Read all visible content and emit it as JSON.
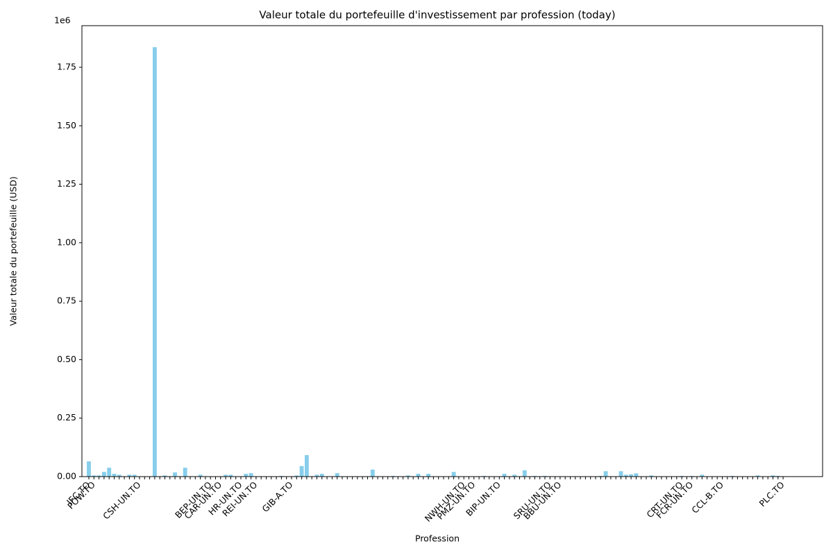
{
  "chart_data": {
    "type": "bar",
    "title": "Valeur totale du portefeuille d'investissement par profession (today)",
    "x_label": "Profession",
    "y_label": "Valeur totale du portefeuille (USD)",
    "y_offset_label": "1e6",
    "color": "#87ceeb",
    "categories": [
      "IFC.TO",
      "POW.TO",
      null,
      null,
      null,
      null,
      null,
      null,
      null,
      null,
      "CSH-UN.TO",
      null,
      null,
      null,
      null,
      null,
      null,
      null,
      null,
      null,
      null,
      null,
      null,
      null,
      "BEP-UN.TO",
      null,
      "CAR-UN.TO",
      null,
      null,
      null,
      "HR-UN.TO",
      null,
      null,
      "REI-UN.TO",
      null,
      null,
      null,
      null,
      null,
      null,
      "GIB-A.TO",
      null,
      null,
      null,
      null,
      null,
      null,
      null,
      null,
      null,
      null,
      null,
      null,
      null,
      null,
      null,
      null,
      null,
      null,
      null,
      null,
      null,
      null,
      null,
      null,
      null,
      null,
      null,
      null,
      null,
      null,
      null,
      null,
      null,
      "NWH-UN.TO",
      null,
      "PMZ-UN.TO",
      null,
      null,
      null,
      null,
      "BIP-UN.TO",
      null,
      null,
      null,
      null,
      null,
      null,
      null,
      null,
      null,
      "SRU-UN.TO",
      null,
      "BBU-UN.TO",
      null,
      null,
      null,
      null,
      null,
      null,
      null,
      null,
      null,
      null,
      null,
      null,
      null,
      null,
      null,
      null,
      null,
      null,
      null,
      null,
      null,
      null,
      null,
      "CRT-UN.TO",
      null,
      "FCR-UN.TO",
      null,
      null,
      null,
      null,
      null,
      "CCL-B.TO",
      null,
      null,
      null,
      null,
      null,
      null,
      null,
      null,
      null,
      null,
      null,
      "PLC.TO"
    ],
    "values": [
      65000,
      5000,
      5000,
      20000,
      38000,
      12000,
      8000,
      0,
      8000,
      8000,
      0,
      0,
      0,
      1836000,
      0,
      5000,
      0,
      18000,
      0,
      38000,
      0,
      0,
      8000,
      0,
      0,
      0,
      0,
      8000,
      8000,
      0,
      0,
      12000,
      15000,
      0,
      0,
      0,
      0,
      0,
      3000,
      0,
      0,
      5000,
      45000,
      92000,
      0,
      8000,
      12000,
      0,
      0,
      15000,
      0,
      0,
      0,
      0,
      0,
      0,
      30000,
      0,
      0,
      0,
      3000,
      0,
      0,
      5000,
      0,
      12000,
      0,
      12000,
      0,
      0,
      0,
      0,
      20000,
      0,
      0,
      0,
      0,
      0,
      3000,
      0,
      0,
      0,
      12000,
      0,
      8000,
      0,
      27000,
      0,
      3000,
      0,
      3000,
      0,
      0,
      0,
      0,
      0,
      0,
      0,
      0,
      0,
      0,
      3000,
      23000,
      0,
      0,
      23000,
      8000,
      10000,
      14000,
      0,
      0,
      5000,
      0,
      0,
      0,
      0,
      0,
      3000,
      0,
      3000,
      0,
      8000,
      0,
      0,
      0,
      0,
      0,
      3000,
      0,
      0,
      0,
      0,
      5000,
      0,
      0,
      5000,
      3000,
      0
    ],
    "ylim": [
      0,
      1928000
    ],
    "yticks": [
      {
        "value": 0,
        "label": "0.00"
      },
      {
        "value": 250000,
        "label": "0.25"
      },
      {
        "value": 500000,
        "label": "0.50"
      },
      {
        "value": 750000,
        "label": "0.75"
      },
      {
        "value": 1000000,
        "label": "1.00"
      },
      {
        "value": 1250000,
        "label": "1.25"
      },
      {
        "value": 1500000,
        "label": "1.50"
      },
      {
        "value": 1750000,
        "label": "1.75"
      }
    ],
    "grid": false
  }
}
